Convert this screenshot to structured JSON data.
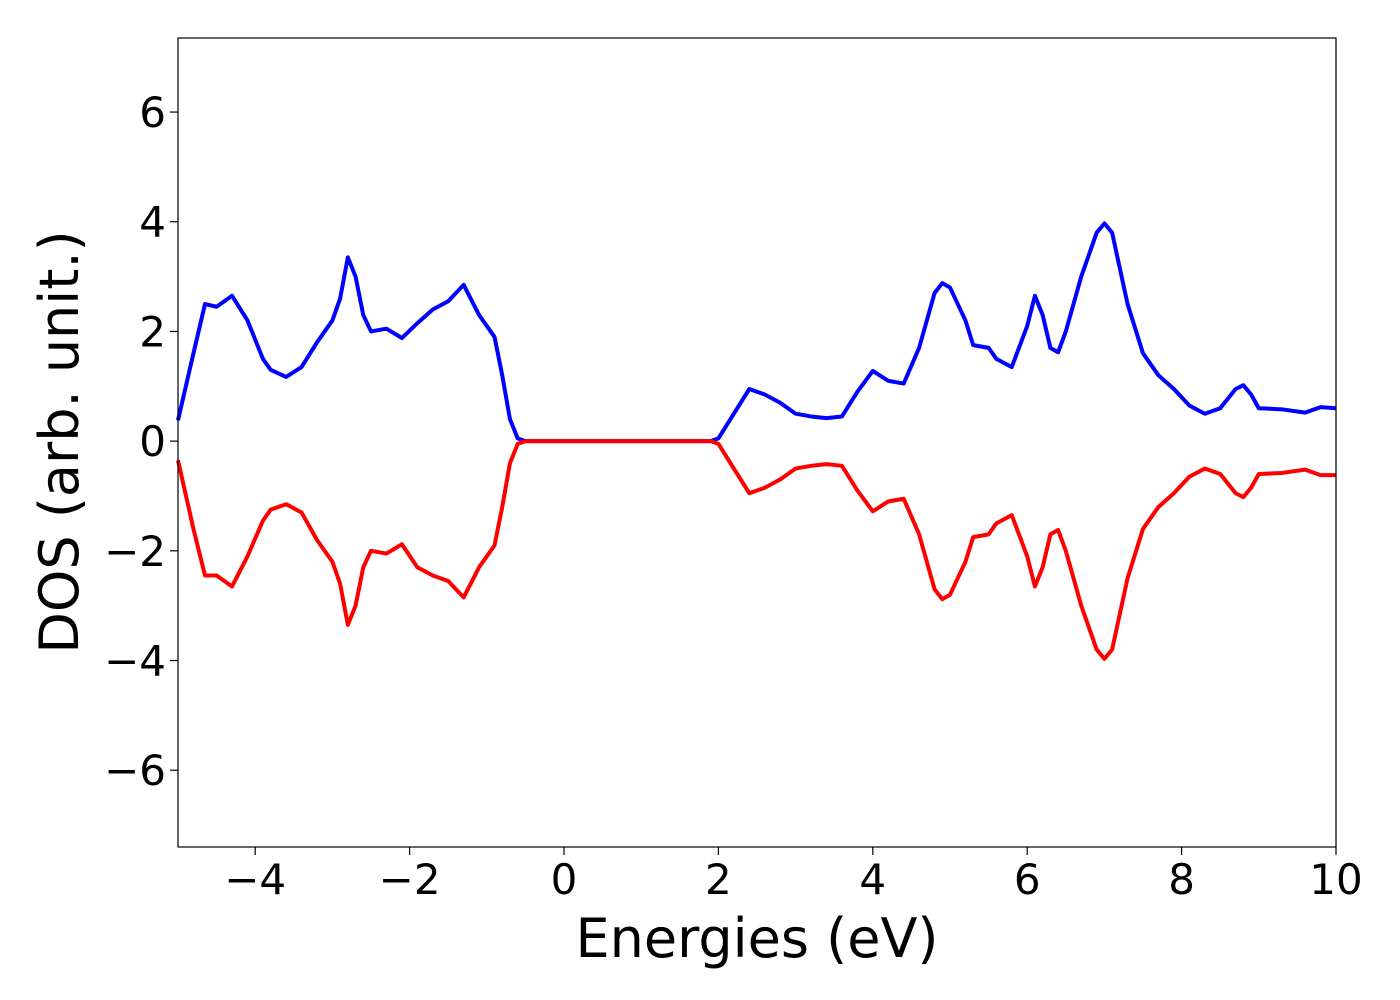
{
  "chart_data": {
    "type": "line",
    "xlabel": "Energies (eV)",
    "ylabel": "DOS (arb. unit.)",
    "xlim": [
      -5,
      10
    ],
    "ylim": [
      -7.4,
      7.35
    ],
    "xticks": [
      {
        "value": -4,
        "label": "−4"
      },
      {
        "value": -2,
        "label": "−2"
      },
      0,
      2,
      4,
      6,
      8,
      10
    ],
    "yticks": [
      {
        "value": -6,
        "label": "−6"
      },
      {
        "value": -4,
        "label": "−4"
      },
      {
        "value": -2,
        "label": "−2"
      },
      0,
      2,
      4,
      6
    ],
    "x": [
      -5,
      -4.8,
      -4.65,
      -4.5,
      -4.3,
      -4.1,
      -3.9,
      -3.8,
      -3.6,
      -3.4,
      -3.2,
      -3.0,
      -2.9,
      -2.8,
      -2.7,
      -2.6,
      -2.5,
      -2.3,
      -2.1,
      -1.9,
      -1.7,
      -1.5,
      -1.3,
      -1.1,
      -0.9,
      -0.8,
      -0.7,
      -0.6,
      -0.5,
      1.9,
      2.0,
      2.2,
      2.4,
      2.6,
      2.8,
      3.0,
      3.2,
      3.4,
      3.6,
      3.8,
      4.0,
      4.2,
      4.4,
      4.6,
      4.8,
      4.9,
      5.0,
      5.2,
      5.3,
      5.5,
      5.6,
      5.8,
      6.0,
      6.1,
      6.2,
      6.3,
      6.4,
      6.5,
      6.7,
      6.9,
      7.0,
      7.1,
      7.3,
      7.5,
      7.7,
      7.9,
      8.1,
      8.3,
      8.5,
      8.7,
      8.8,
      8.9,
      9.0,
      9.3,
      9.6,
      9.8,
      10.0
    ],
    "series": [
      {
        "color": "#0000ff",
        "values": [
          0.38,
          1.6,
          2.5,
          2.45,
          2.65,
          2.2,
          1.5,
          1.3,
          1.17,
          1.35,
          1.8,
          2.2,
          2.6,
          3.35,
          3.0,
          2.3,
          2.0,
          2.05,
          1.88,
          2.15,
          2.4,
          2.55,
          2.85,
          2.3,
          1.9,
          1.2,
          0.4,
          0.05,
          0,
          0,
          0.05,
          0.5,
          0.95,
          0.85,
          0.7,
          0.5,
          0.45,
          0.42,
          0.45,
          0.9,
          1.28,
          1.1,
          1.05,
          1.7,
          2.7,
          2.88,
          2.8,
          2.2,
          1.75,
          1.7,
          1.5,
          1.35,
          2.1,
          2.65,
          2.3,
          1.7,
          1.62,
          2.0,
          3.0,
          3.8,
          3.97,
          3.8,
          2.5,
          1.6,
          1.2,
          0.95,
          0.65,
          0.5,
          0.6,
          0.95,
          1.02,
          0.85,
          0.6,
          0.58,
          0.52,
          0.62,
          0.6
        ]
      },
      {
        "color": "#ff0000",
        "values": [
          -0.35,
          -1.6,
          -2.45,
          -2.45,
          -2.65,
          -2.1,
          -1.45,
          -1.25,
          -1.15,
          -1.3,
          -1.8,
          -2.2,
          -2.6,
          -3.35,
          -3.0,
          -2.3,
          -2.0,
          -2.05,
          -1.88,
          -2.3,
          -2.45,
          -2.55,
          -2.85,
          -2.3,
          -1.9,
          -1.2,
          -0.4,
          -0.05,
          0,
          0,
          -0.05,
          -0.5,
          -0.95,
          -0.85,
          -0.7,
          -0.5,
          -0.45,
          -0.42,
          -0.45,
          -0.9,
          -1.28,
          -1.1,
          -1.05,
          -1.7,
          -2.7,
          -2.88,
          -2.8,
          -2.2,
          -1.75,
          -1.7,
          -1.5,
          -1.35,
          -2.1,
          -2.65,
          -2.3,
          -1.7,
          -1.62,
          -2.0,
          -3.0,
          -3.8,
          -3.97,
          -3.8,
          -2.5,
          -1.6,
          -1.2,
          -0.95,
          -0.65,
          -0.5,
          -0.6,
          -0.95,
          -1.02,
          -0.85,
          -0.6,
          -0.58,
          -0.52,
          -0.62,
          -0.62
        ]
      }
    ]
  }
}
